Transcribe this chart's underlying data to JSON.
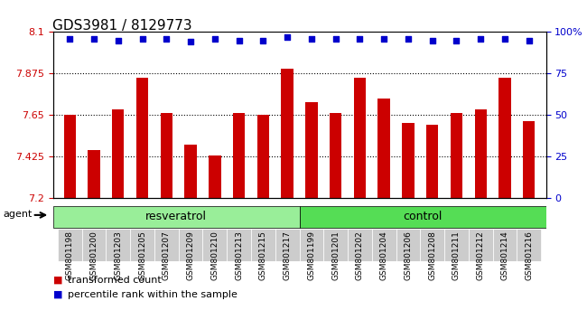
{
  "title": "GDS3981 / 8129773",
  "samples": [
    "GSM801198",
    "GSM801200",
    "GSM801203",
    "GSM801205",
    "GSM801207",
    "GSM801209",
    "GSM801210",
    "GSM801213",
    "GSM801215",
    "GSM801217",
    "GSM801199",
    "GSM801201",
    "GSM801202",
    "GSM801204",
    "GSM801206",
    "GSM801208",
    "GSM801211",
    "GSM801212",
    "GSM801214",
    "GSM801216"
  ],
  "bar_values": [
    7.65,
    7.46,
    7.68,
    7.855,
    7.66,
    7.49,
    7.43,
    7.66,
    7.65,
    7.9,
    7.72,
    7.66,
    7.855,
    7.74,
    7.61,
    7.6,
    7.66,
    7.68,
    7.855,
    7.62
  ],
  "percentile_values": [
    96,
    96,
    95,
    96,
    96,
    94,
    96,
    95,
    95,
    97,
    96,
    96,
    96,
    96,
    96,
    95,
    95,
    96,
    96,
    95
  ],
  "resveratrol_count": 10,
  "control_count": 10,
  "ylim_left": [
    7.2,
    8.1
  ],
  "ylim_right": [
    0,
    100
  ],
  "yticks_left": [
    7.2,
    7.425,
    7.65,
    7.875,
    8.1
  ],
  "ytick_labels_left": [
    "7.2",
    "7.425",
    "7.65",
    "7.875",
    "8.1"
  ],
  "yticks_right": [
    0,
    25,
    50,
    75,
    100
  ],
  "ytick_labels_right": [
    "0",
    "25",
    "50",
    "75",
    "100%"
  ],
  "bar_color": "#cc0000",
  "dot_color": "#0000cc",
  "resveratrol_color": "#99ee99",
  "control_color": "#55dd55",
  "bg_color": "#cccccc",
  "grid_color": "#000000",
  "agent_label": "agent",
  "resveratrol_label": "resveratrol",
  "control_label": "control",
  "legend_bar_label": "transformed count",
  "legend_dot_label": "percentile rank within the sample"
}
